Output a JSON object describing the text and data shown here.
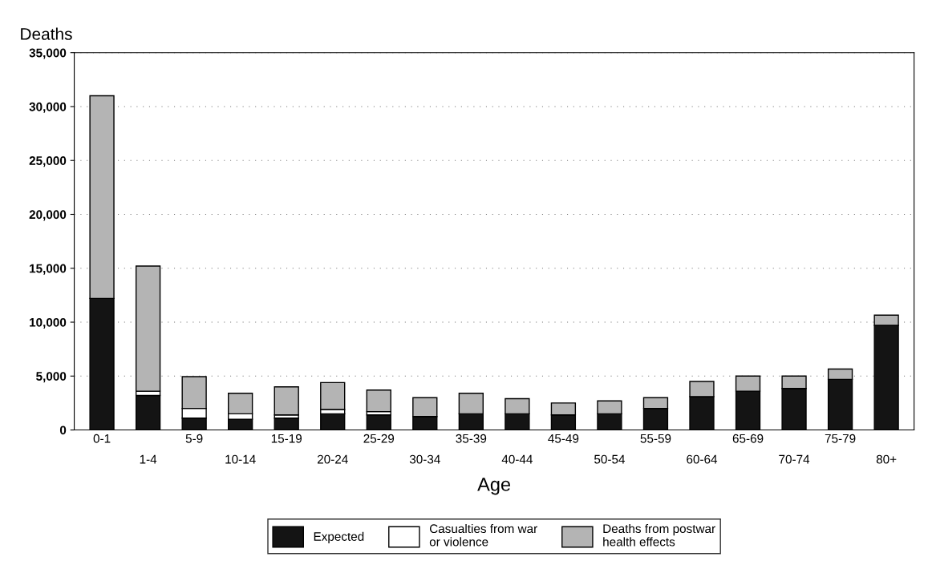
{
  "chart_data": {
    "type": "bar",
    "stacked": true,
    "ylabel": "Deaths",
    "xlabel": "Age",
    "categories": [
      "0-1",
      "1-4",
      "5-9",
      "10-14",
      "15-19",
      "20-24",
      "25-29",
      "30-34",
      "35-39",
      "40-44",
      "45-49",
      "50-54",
      "55-59",
      "60-64",
      "65-69",
      "70-74",
      "75-79",
      "80+"
    ],
    "series": [
      {
        "name": "Expected",
        "color": "#141414",
        "values": [
          12200,
          3200,
          1100,
          1000,
          1100,
          1500,
          1400,
          1250,
          1500,
          1500,
          1400,
          1500,
          2000,
          3100,
          3600,
          3850,
          4700,
          9700
        ]
      },
      {
        "name": "Casualties from war\nor violence",
        "color": "#ffffff",
        "values": [
          0,
          400,
          900,
          500,
          300,
          400,
          300,
          0,
          0,
          0,
          0,
          0,
          0,
          0,
          0,
          0,
          0,
          0
        ]
      },
      {
        "name": "Deaths from postwar\nhealth effects",
        "color": "#b4b4b4",
        "values": [
          18800,
          11600,
          2950,
          1900,
          2600,
          2500,
          2000,
          1750,
          1900,
          1400,
          1100,
          1200,
          1000,
          1400,
          1400,
          1150,
          950,
          950
        ]
      }
    ],
    "ylim": [
      0,
      35000
    ],
    "yticks": [
      0,
      {
        "value": 5000,
        "label": "5,000"
      },
      {
        "value": 10000,
        "label": "10,000"
      },
      {
        "value": 15000,
        "label": "15,000"
      },
      {
        "value": 20000,
        "label": "20,000"
      },
      {
        "value": 25000,
        "label": "25,000"
      },
      {
        "value": 30000,
        "label": "30,000"
      },
      {
        "value": 35000,
        "label": "35,000"
      }
    ],
    "grid": "y",
    "legend": "bottom"
  }
}
